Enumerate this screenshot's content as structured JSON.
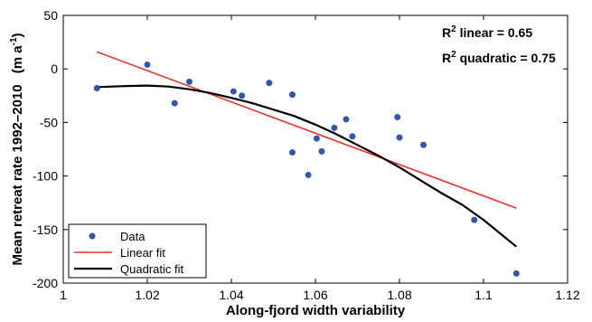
{
  "chart_data": {
    "type": "scatter",
    "xlabel": "Along-fjord width variability",
    "ylabel": "Mean retreat rate 1992–2010",
    "ylabel_unit_prefix": "(m a",
    "ylabel_unit_exp": "-1",
    "ylabel_unit_suffix": ")",
    "xlim": [
      1,
      1.12
    ],
    "ylim": [
      -200,
      50
    ],
    "xticks": [
      1,
      1.02,
      1.04,
      1.06,
      1.08,
      1.1,
      1.12
    ],
    "xtick_labels": [
      "1",
      "1.02",
      "1.04",
      "1.06",
      "1.08",
      "1.1",
      "1.12"
    ],
    "yticks": [
      50,
      0,
      -50,
      -100,
      -150,
      -200
    ],
    "ytick_labels": [
      "50",
      "0",
      "-50",
      "-100",
      "-150",
      "-200"
    ],
    "grid": false,
    "legend_position": "bottom-left",
    "annotations": [
      {
        "base": "R",
        "sup": "2",
        "rest": " linear = 0.65"
      },
      {
        "base": "R",
        "sup": "2",
        "rest": " quadratic = 0.75"
      }
    ],
    "series": [
      {
        "name": "Data",
        "kind": "points",
        "color": "#3355b0",
        "points": [
          [
            1.008,
            -18
          ],
          [
            1.02,
            4
          ],
          [
            1.0265,
            -32
          ],
          [
            1.03,
            -12
          ],
          [
            1.0405,
            -21
          ],
          [
            1.0425,
            -25
          ],
          [
            1.049,
            -13
          ],
          [
            1.0545,
            -24
          ],
          [
            1.0545,
            -78
          ],
          [
            1.0583,
            -99
          ],
          [
            1.0603,
            -65
          ],
          [
            1.0615,
            -77
          ],
          [
            1.0645,
            -55
          ],
          [
            1.0673,
            -47
          ],
          [
            1.0688,
            -63
          ],
          [
            1.0795,
            -45
          ],
          [
            1.08,
            -64
          ],
          [
            1.0857,
            -71
          ],
          [
            1.0978,
            -141
          ],
          [
            1.1078,
            -191
          ]
        ]
      },
      {
        "name": "Linear fit",
        "kind": "line",
        "color": "#e8322a",
        "points": [
          [
            1.008,
            16
          ],
          [
            1.1078,
            -130
          ]
        ]
      },
      {
        "name": "Quadratic fit",
        "kind": "line",
        "color": "#000000",
        "points": [
          [
            1.008,
            -17
          ],
          [
            1.015,
            -16
          ],
          [
            1.02,
            -15.5
          ],
          [
            1.025,
            -16.5
          ],
          [
            1.03,
            -19
          ],
          [
            1.035,
            -22.5
          ],
          [
            1.04,
            -27
          ],
          [
            1.045,
            -32
          ],
          [
            1.05,
            -38
          ],
          [
            1.055,
            -44
          ],
          [
            1.06,
            -52
          ],
          [
            1.065,
            -61
          ],
          [
            1.07,
            -71
          ],
          [
            1.075,
            -81
          ],
          [
            1.08,
            -92
          ],
          [
            1.085,
            -104
          ],
          [
            1.09,
            -116
          ],
          [
            1.095,
            -127
          ],
          [
            1.1,
            -141
          ],
          [
            1.1078,
            -166
          ]
        ]
      }
    ]
  }
}
